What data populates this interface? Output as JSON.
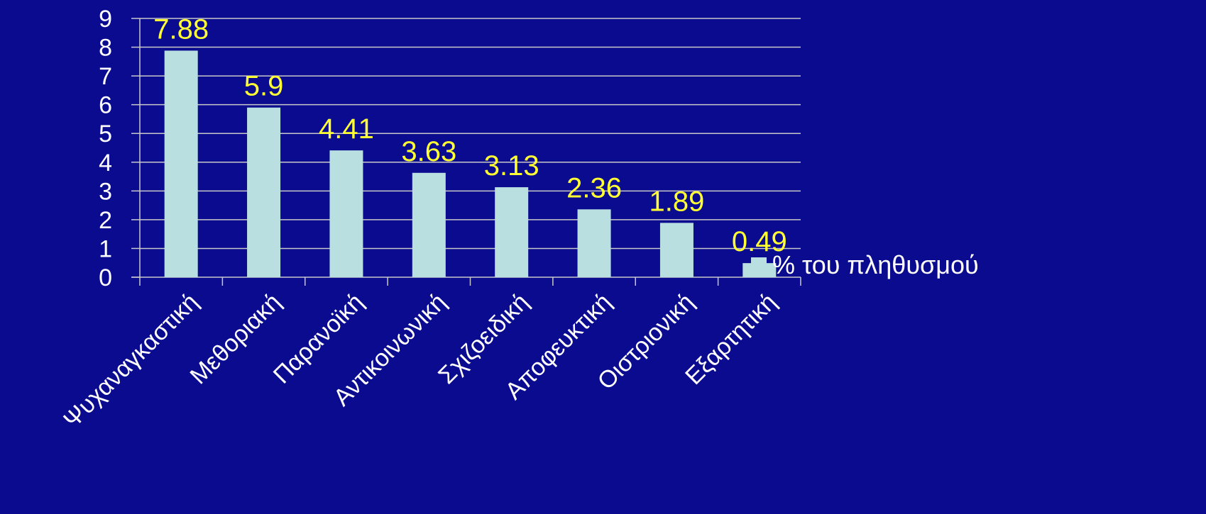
{
  "chart_data": {
    "type": "bar",
    "categories": [
      "Ψυχαναγκαστική",
      "Μεθοριακή",
      "Παρανοϊκή",
      "Αντικοινωνική",
      "Σχιζοειδική",
      "Αποφευκτική",
      "Οιστριονική",
      "Εξαρτητική"
    ],
    "series": [
      {
        "name": "% του πληθυσμού",
        "values": [
          7.88,
          5.9,
          4.41,
          3.63,
          3.13,
          2.36,
          1.89,
          0.49
        ],
        "data_labels": [
          "7.88",
          "5.9",
          "4.41",
          "3.63",
          "3.13",
          "2.36",
          "1.89",
          "0.49"
        ],
        "color": "#b9dfe0"
      }
    ],
    "ylim": [
      0,
      9
    ],
    "yticks": [
      "0",
      "1",
      "2",
      "3",
      "4",
      "5",
      "6",
      "7",
      "8",
      "9"
    ],
    "grid": true,
    "legend_position": "right",
    "title": "",
    "xlabel": "",
    "ylabel": ""
  },
  "colors": {
    "background": "#0b0b8f",
    "bar": "#b9dfe0",
    "data_label": "#ffff33",
    "text": "#ffffff",
    "grid": "#c8c8c8",
    "axis": "#c8c8c8"
  }
}
